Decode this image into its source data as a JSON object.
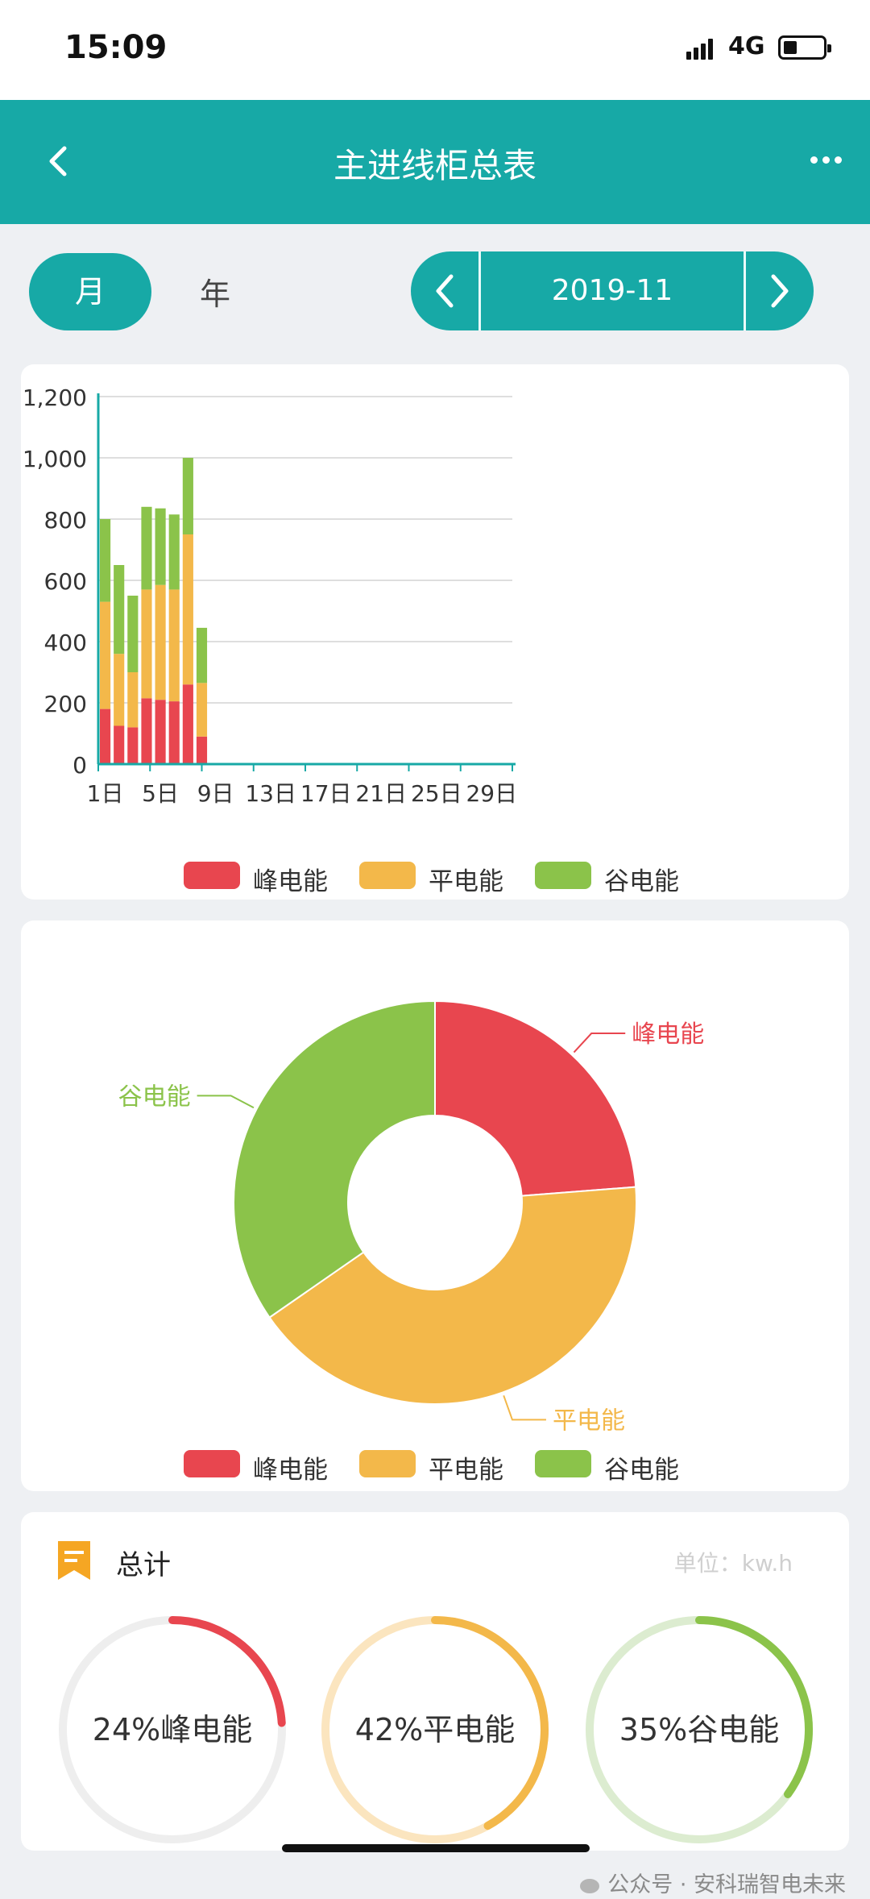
{
  "status": {
    "time": "15:09",
    "network": "4G"
  },
  "nav": {
    "title": "主进线柜总表"
  },
  "period_tabs": {
    "month": "月",
    "year": "年"
  },
  "date_picker": {
    "value": "2019-11"
  },
  "colors": {
    "peak": "#e8464f",
    "flat": "#f3b84a",
    "valley": "#8bc34a",
    "accent": "#17a9a6"
  },
  "chart_data": [
    {
      "type": "bar",
      "stacked": true,
      "x_tick_labels": [
        "1日",
        "5日",
        "9日",
        "13日",
        "17日",
        "21日",
        "25日",
        "29日"
      ],
      "y_tick_labels": [
        "0",
        "200",
        "400",
        "600",
        "800",
        "1,000",
        "1,200"
      ],
      "ylim": [
        0,
        1200
      ],
      "grid": true,
      "legend_position": "bottom",
      "categories": [
        1,
        2,
        3,
        4,
        5,
        6,
        7,
        8,
        9,
        10,
        11,
        12,
        13,
        14,
        15,
        16,
        17,
        18,
        19,
        20,
        21,
        22,
        23,
        24,
        25,
        26,
        27,
        28,
        29,
        30
      ],
      "series": [
        {
          "name": "峰电能",
          "values": [
            180,
            125,
            120,
            215,
            210,
            205,
            260,
            90,
            0,
            0,
            0,
            0,
            0,
            0,
            0,
            0,
            0,
            0,
            0,
            0,
            0,
            0,
            0,
            0,
            0,
            0,
            0,
            0,
            0,
            0
          ]
        },
        {
          "name": "平电能",
          "values": [
            350,
            235,
            180,
            355,
            375,
            365,
            490,
            175,
            0,
            0,
            0,
            0,
            0,
            0,
            0,
            0,
            0,
            0,
            0,
            0,
            0,
            0,
            0,
            0,
            0,
            0,
            0,
            0,
            0,
            0
          ]
        },
        {
          "name": "谷电能",
          "values": [
            270,
            290,
            250,
            270,
            250,
            245,
            250,
            180,
            0,
            0,
            0,
            0,
            0,
            0,
            0,
            0,
            0,
            0,
            0,
            0,
            0,
            0,
            0,
            0,
            0,
            0,
            0,
            0,
            0,
            0
          ]
        }
      ]
    },
    {
      "type": "pie",
      "donut": true,
      "legend_position": "bottom",
      "labels": [
        "峰电能",
        "平电能",
        "谷电能"
      ],
      "values": [
        24,
        42,
        35
      ]
    }
  ],
  "total": {
    "title": "总计",
    "unit": "单位：kw.h",
    "items": [
      {
        "label": "24%峰电能",
        "percent": 24
      },
      {
        "label": "42%平电能",
        "percent": 42
      },
      {
        "label": "35%谷电能",
        "percent": 35
      }
    ]
  },
  "watermark": "公众号 · 安科瑞智电未来"
}
